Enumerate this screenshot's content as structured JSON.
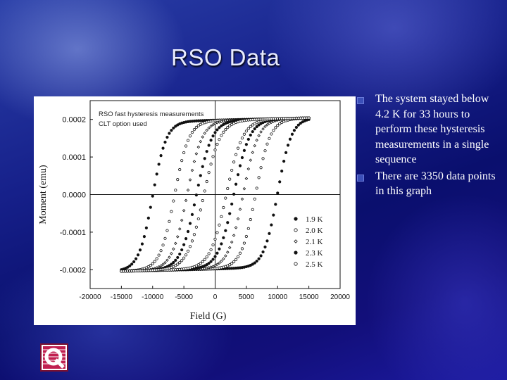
{
  "slide": {
    "title": "RSO Data",
    "bullets": [
      {
        "text": "The system stayed below 4.2 K for 33 hours to perform these hysteresis measurements in a single sequence"
      },
      {
        "text": "There are 3350 data points in this graph"
      }
    ],
    "logo_icon": "quantum-design-q-logo-icon"
  },
  "colors": {
    "accent": "#16208a",
    "text": "#ffffff",
    "plot_ink": "#111111"
  },
  "chart_data": {
    "type": "scatter",
    "xlabel": "Field (G)",
    "ylabel": "Moment (emu)",
    "xlim": [
      -20000,
      20000
    ],
    "ylim": [
      -0.00025,
      0.00025
    ],
    "xticks": [
      "-20000",
      "-15000",
      "-10000",
      "-5000",
      "0",
      "5000",
      "10000",
      "15000",
      "20000"
    ],
    "yticks": [
      "0.0002",
      "0.0001",
      "0.0000",
      "-0.0001",
      "-0.0002"
    ],
    "zero_lines": true,
    "annotations": [
      "RSO fast hysteresis measurements",
      "CLT option used"
    ],
    "legend_position": "bottom-right",
    "series": [
      {
        "name": "1.9 K",
        "marker": "filled-circle",
        "coercive_field": 10000,
        "saturation": 0.00022,
        "width": 2200
      },
      {
        "name": "2.0 K",
        "marker": "open-circle",
        "coercive_field": 6500,
        "saturation": 0.00022,
        "width": 2300
      },
      {
        "name": "2.1 K",
        "marker": "open-diamond",
        "coercive_field": 4500,
        "saturation": 0.00022,
        "width": 2400
      },
      {
        "name": "2.3 K",
        "marker": "filled-circle",
        "coercive_field": 3000,
        "saturation": 0.00022,
        "width": 2500
      },
      {
        "name": "2.5 K",
        "marker": "open-circle",
        "coercive_field": 1800,
        "saturation": 0.00022,
        "width": 2600
      }
    ]
  }
}
